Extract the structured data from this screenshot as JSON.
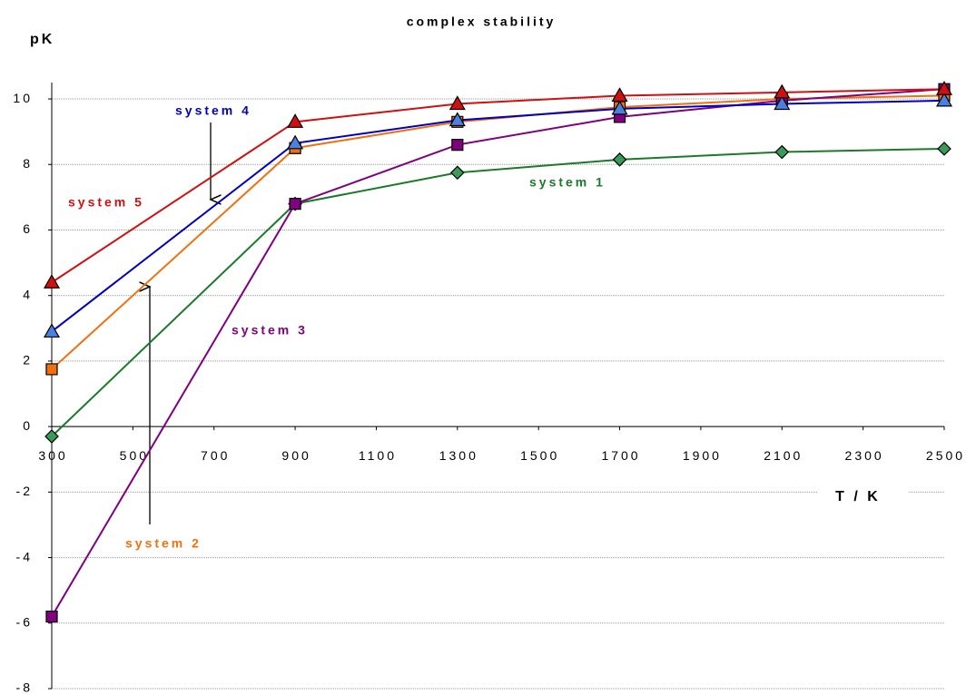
{
  "chart_data": {
    "type": "line",
    "title": "complex stability",
    "xlabel": "T / K",
    "ylabel": "pK",
    "x": [
      300,
      900,
      1300,
      1700,
      2100,
      2500
    ],
    "series": [
      {
        "name": "system 1",
        "color": "#1a7a2a",
        "marker": "diamond",
        "marker_color": "#3a9a5a",
        "values": [
          -0.3,
          6.8,
          7.75,
          8.15,
          8.38,
          8.48
        ]
      },
      {
        "name": "system 2",
        "color": "#f07010",
        "marker": "square",
        "marker_color": "#f07010",
        "values": [
          1.75,
          8.5,
          9.3,
          9.75,
          10.0,
          10.1
        ]
      },
      {
        "name": "system 3",
        "color": "#800080",
        "marker": "square",
        "marker_color": "#800080",
        "values": [
          -5.8,
          6.8,
          8.6,
          9.45,
          9.95,
          10.3
        ]
      },
      {
        "name": "system 4",
        "color": "#0000c0",
        "marker": "triangle",
        "marker_color": "#4a80e0",
        "values": [
          2.9,
          8.65,
          9.35,
          9.7,
          9.85,
          9.95
        ]
      },
      {
        "name": "system 5",
        "color": "#d01010",
        "marker": "triangle",
        "marker_color": "#d01010",
        "values": [
          4.4,
          9.3,
          9.85,
          10.1,
          10.2,
          10.3
        ]
      }
    ],
    "xlim": [
      300,
      2500
    ],
    "xticks": [
      300,
      500,
      700,
      900,
      1100,
      1300,
      1500,
      1700,
      1900,
      2100,
      2300,
      2500
    ],
    "ylim": [
      -8,
      10.5
    ],
    "yticks": [
      -8,
      -6,
      -4,
      -2,
      0,
      2,
      4,
      6,
      8,
      10
    ],
    "grid": true
  }
}
